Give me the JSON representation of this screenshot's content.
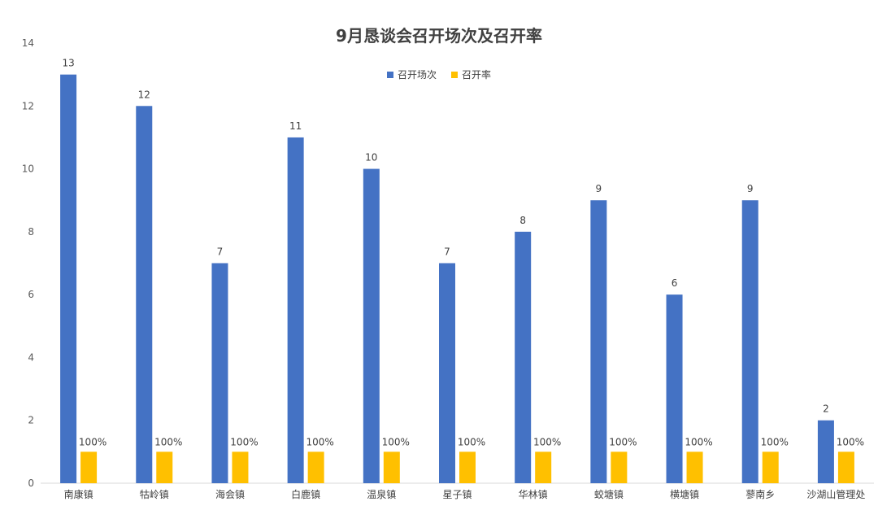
{
  "chart_data": {
    "type": "bar",
    "title": "9月恳谈会召开场次及召开率",
    "categories": [
      "南康镇",
      "牯岭镇",
      "海会镇",
      "白鹿镇",
      "温泉镇",
      "星子镇",
      "华林镇",
      "蛟塘镇",
      "横塘镇",
      "蓼南乡",
      "沙湖山管理处"
    ],
    "series": [
      {
        "name": "召开场次",
        "color": "#4472C4",
        "values": [
          13,
          12,
          7,
          11,
          10,
          7,
          8,
          9,
          6,
          9,
          2
        ],
        "labels": [
          "13",
          "12",
          "7",
          "11",
          "10",
          "7",
          "8",
          "9",
          "6",
          "9",
          "2"
        ]
      },
      {
        "name": "召开率",
        "color": "#FFC000",
        "values": [
          1,
          1,
          1,
          1,
          1,
          1,
          1,
          1,
          1,
          1,
          1
        ],
        "labels": [
          "100%",
          "100%",
          "100%",
          "100%",
          "100%",
          "100%",
          "100%",
          "100%",
          "100%",
          "100%",
          "100%"
        ]
      }
    ],
    "ylim": [
      0,
      14
    ],
    "yticks": [
      "0",
      "2",
      "4",
      "6",
      "8",
      "10",
      "12",
      "14"
    ],
    "grid": false,
    "legend_position": "top-center"
  }
}
